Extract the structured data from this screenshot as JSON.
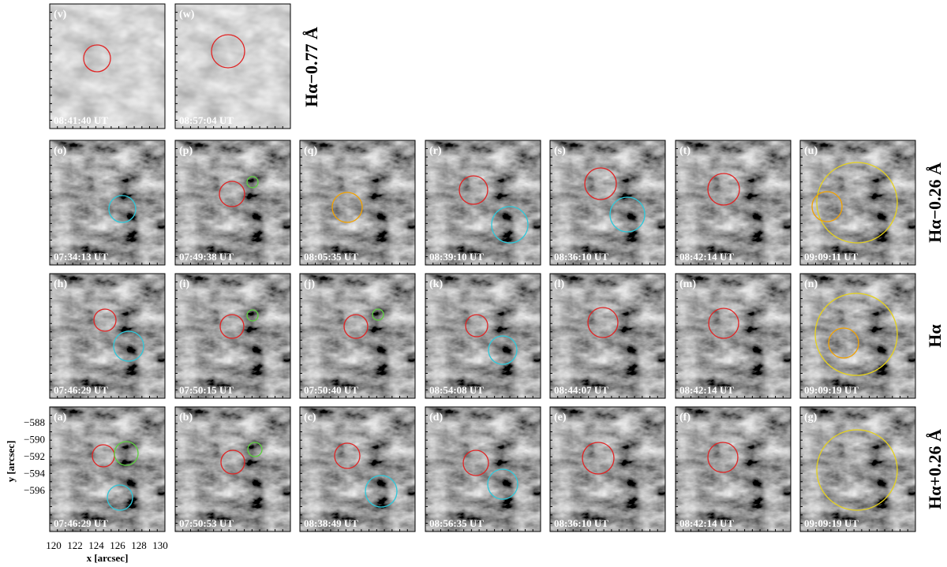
{
  "rows": [
    {
      "label": "Hα−0.77 Å",
      "panels": [
        {
          "label": "(v)",
          "time": "08:41:40 UT"
        },
        {
          "label": "(w)",
          "time": "08:57:04 UT"
        }
      ]
    },
    {
      "label": "Hα−0.26 Å",
      "panels": [
        {
          "label": "(o)",
          "time": "07:34:13 UT"
        },
        {
          "label": "(p)",
          "time": "07:49:38 UT"
        },
        {
          "label": "(q)",
          "time": "08:05:35 UT"
        },
        {
          "label": "(r)",
          "time": "08:39:10 UT"
        },
        {
          "label": "(s)",
          "time": "08:36:10 UT"
        },
        {
          "label": "(t)",
          "time": "08:42:14 UT"
        },
        {
          "label": "(u)",
          "time": "09:09:11 UT"
        }
      ]
    },
    {
      "label": "Hα",
      "panels": [
        {
          "label": "(h)",
          "time": "07:46:29 UT"
        },
        {
          "label": "(i)",
          "time": "07:50:15 UT"
        },
        {
          "label": "(j)",
          "time": "07:50:40 UT"
        },
        {
          "label": "(k)",
          "time": "08:54:08 UT"
        },
        {
          "label": "(l)",
          "time": "08:44:07 UT"
        },
        {
          "label": "(m)",
          "time": "08:42:14 UT"
        },
        {
          "label": "(n)",
          "time": "09:09:19 UT"
        }
      ]
    },
    {
      "label": "Hα+0.26 Å",
      "panels": [
        {
          "label": "(a)",
          "time": "07:46:29 UT"
        },
        {
          "label": "(b)",
          "time": "07:50:53 UT"
        },
        {
          "label": "(c)",
          "time": "08:38:49 UT"
        },
        {
          "label": "(d)",
          "time": "08:56:35 UT"
        },
        {
          "label": "(e)",
          "time": "08:36:10 UT"
        },
        {
          "label": "(f)",
          "time": "08:42:14 UT"
        },
        {
          "label": "(g)",
          "time": "09:09:19 UT"
        }
      ]
    }
  ],
  "x_axis": {
    "label": "x [arcsec]",
    "ticks": [
      "120",
      "122",
      "124",
      "126",
      "128",
      "130"
    ]
  },
  "y_axis": {
    "label": "y [arcsec]",
    "ticks": [
      "−588",
      "−590",
      "−592",
      "−594",
      "−596"
    ]
  }
}
